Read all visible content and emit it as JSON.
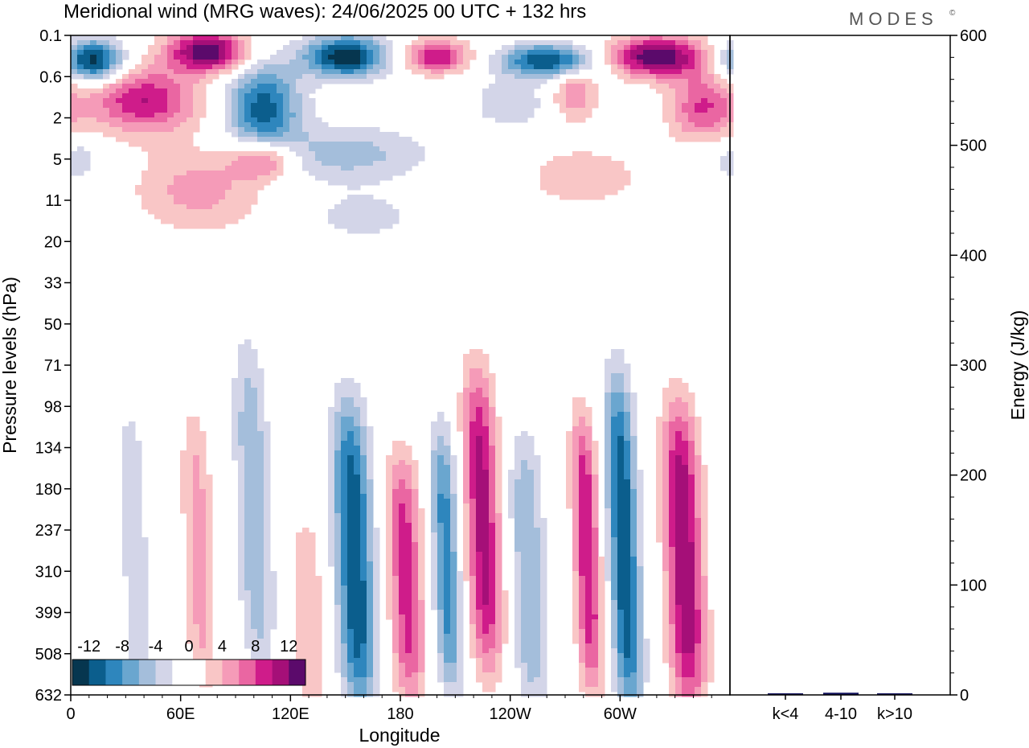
{
  "title": "Meridional wind (MRG waves):  24/06/2025  00 UTC  + 132 hrs",
  "logo": "MODES",
  "logo_mark": "©",
  "colors": {
    "neg": [
      "#06364f",
      "#0b5e8d",
      "#2e86bd",
      "#6aa6cf",
      "#a4bedb",
      "#d3d5e8"
    ],
    "zero": "#ffffff",
    "pos": [
      "#f9c6c6",
      "#f59bb8",
      "#ea66a2",
      "#cf1c8a",
      "#a50f78",
      "#5b0a6b"
    ],
    "energy_bar": "#12125e"
  },
  "chart_data": [
    {
      "type": "heatmap",
      "xlabel": "Longitude",
      "ylabel": "Pressure levels (hPa)",
      "x_ticks": [
        "0",
        "60E",
        "120E",
        "180",
        "120W",
        "60W"
      ],
      "y_ticks": [
        "0.1",
        "0.6",
        "2",
        "5",
        "11",
        "20",
        "33",
        "50",
        "71",
        "98",
        "134",
        "180",
        "237",
        "310",
        "399",
        "508",
        "632"
      ],
      "colorbar": {
        "levels": [
          -12,
          -10,
          -8,
          -6,
          -4,
          -2,
          0,
          2,
          4,
          6,
          8,
          10,
          12
        ],
        "labels": [
          "-12",
          "-8",
          "-4",
          "0",
          "4",
          "8",
          "12"
        ]
      },
      "bands": [
        {
          "lon": 35,
          "p_top": 98,
          "p_bot": 632,
          "v": -3,
          "w": 9
        },
        {
          "lon": 70,
          "p_top": 120,
          "p_bot": 560,
          "v": 5,
          "w": 8
        },
        {
          "lon": 100,
          "p_top": 71,
          "p_bot": 500,
          "v": -6,
          "w": 9
        },
        {
          "lon": 130,
          "p_top": 250,
          "p_bot": 632,
          "v": 4,
          "w": 8
        },
        {
          "lon": 155,
          "p_top": 110,
          "p_bot": 620,
          "v": -12,
          "w": 10
        },
        {
          "lon": 183,
          "p_top": 160,
          "p_bot": 600,
          "v": 9,
          "w": 9
        },
        {
          "lon": 205,
          "p_top": 134,
          "p_bot": 560,
          "v": -9,
          "w": 7
        },
        {
          "lon": 225,
          "p_top": 85,
          "p_bot": 500,
          "v": 11,
          "w": 9
        },
        {
          "lon": 250,
          "p_top": 140,
          "p_bot": 620,
          "v": -6,
          "w": 9
        },
        {
          "lon": 282,
          "p_top": 120,
          "p_bot": 560,
          "v": 10,
          "w": 7
        },
        {
          "lon": 302,
          "p_top": 90,
          "p_bot": 632,
          "v": -12,
          "w": 8
        },
        {
          "lon": 335,
          "p_top": 110,
          "p_bot": 620,
          "v": 12,
          "w": 10
        }
      ],
      "blobs": [
        {
          "lon": 12,
          "p": 0.3,
          "v": -14,
          "w": 16,
          "h": 0.5
        },
        {
          "lon": 40,
          "p": 1.2,
          "v": 10,
          "w": 30,
          "h": 0.8
        },
        {
          "lon": 75,
          "p": 0.2,
          "v": 14,
          "w": 22,
          "h": 0.5
        },
        {
          "lon": 150,
          "p": 0.25,
          "v": -14,
          "w": 22,
          "h": 0.5
        },
        {
          "lon": 105,
          "p": 1.5,
          "v": -11,
          "w": 20,
          "h": 1.1
        },
        {
          "lon": 150,
          "p": 4.5,
          "v": -5,
          "w": 45,
          "h": 0.7
        },
        {
          "lon": 105,
          "p": 5,
          "v": 9,
          "w": 18,
          "h": 0.5
        },
        {
          "lon": 200,
          "p": 0.25,
          "v": 10,
          "w": 18,
          "h": 0.4
        },
        {
          "lon": 260,
          "p": 0.3,
          "v": -12,
          "w": 25,
          "h": 0.4
        },
        {
          "lon": 320,
          "p": 0.25,
          "v": 14,
          "w": 25,
          "h": 0.5
        },
        {
          "lon": 275,
          "p": 1.0,
          "v": 6,
          "w": 12,
          "h": 0.6
        },
        {
          "lon": 345,
          "p": 1.5,
          "v": 8,
          "w": 18,
          "h": 0.9
        },
        {
          "lon": 240,
          "p": 1.3,
          "v": -4,
          "w": 20,
          "h": 0.6
        },
        {
          "lon": 70,
          "p": 9,
          "v": 5,
          "w": 35,
          "h": 1.0
        },
        {
          "lon": 280,
          "p": 7,
          "v": 3,
          "w": 40,
          "h": 0.9
        },
        {
          "lon": 160,
          "p": 14,
          "v": -3,
          "w": 30,
          "h": 0.6
        },
        {
          "lon": 5,
          "p": 5,
          "v": -4,
          "w": 10,
          "h": 0.5
        },
        {
          "lon": 345,
          "p": 5,
          "v": -3,
          "w": 12,
          "h": 0.6
        }
      ]
    },
    {
      "type": "bar",
      "ylabel": "Energy (J/kg)",
      "categories": [
        "k<4",
        "4-10",
        "k>10"
      ],
      "values": [
        0.5,
        2,
        0.5
      ],
      "ylim": [
        0,
        600
      ],
      "y_ticks": [
        "0",
        "100",
        "200",
        "300",
        "400",
        "500",
        "600"
      ]
    }
  ]
}
